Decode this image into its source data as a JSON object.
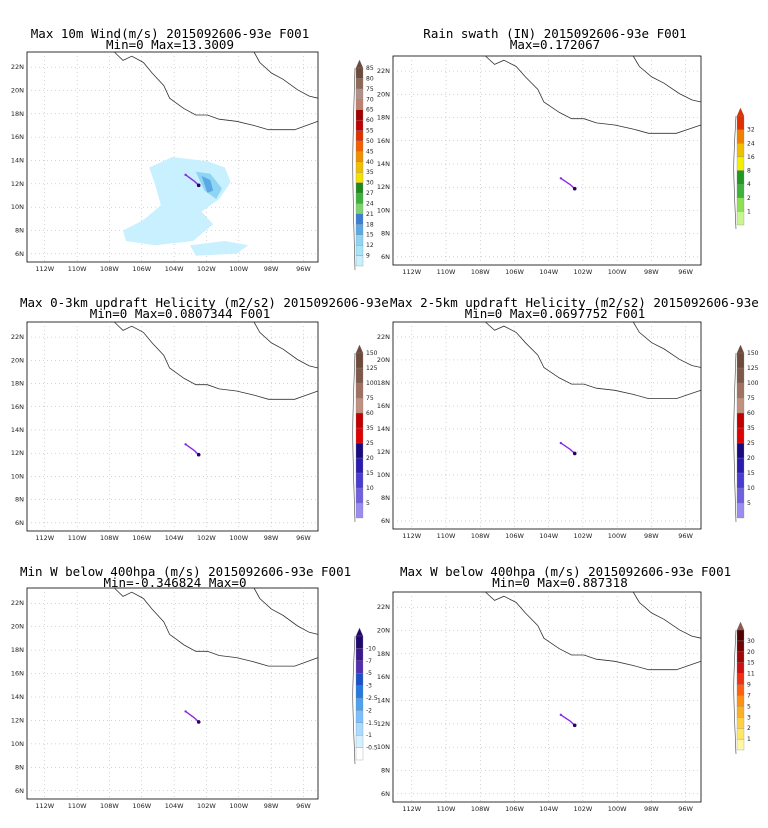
{
  "lat_labels": [
    "6N",
    "8N",
    "10N",
    "12N",
    "14N",
    "16N",
    "18N",
    "20N",
    "22N"
  ],
  "lon_labels": [
    "112W",
    "110W",
    "108W",
    "106W",
    "104W",
    "102W",
    "100W",
    "98W",
    "96W"
  ],
  "colors": {
    "coast": "#333333",
    "grid": "#aaaaaa",
    "track": "#8a2be2",
    "track_end": "#2a0060"
  },
  "panels": [
    {
      "id": "wind",
      "title1": "Max 10m Wind(m/s) 2015092606-93e F001",
      "title2": "Min=0 Max=13.3009",
      "colorbar": {
        "labels": [
          "9",
          "12",
          "15",
          "18",
          "21",
          "24",
          "27",
          "30",
          "35",
          "40",
          "45",
          "50",
          "55",
          "60",
          "65",
          "70",
          "75",
          "80",
          "85"
        ],
        "colors": [
          "#c8f0ff",
          "#a6e6f7",
          "#8fd4f2",
          "#5aa9e6",
          "#3b7fd4",
          "#7fd36e",
          "#3fb03a",
          "#1e8a1e",
          "#f5e000",
          "#f0c000",
          "#f09000",
          "#f06000",
          "#e03000",
          "#c00000",
          "#a00000",
          "#c08070",
          "#b09088",
          "#906858",
          "#6e4a3a"
        ],
        "tip": "#6e4a3a"
      }
    },
    {
      "id": "rain",
      "title1": "Rain swath (IN) 2015092606-93e F001",
      "title2": "Max=0.172067",
      "colorbar": {
        "labels": [
          "1",
          "2",
          "4",
          "8",
          "16",
          "24",
          "32"
        ],
        "colors": [
          "#c8f58c",
          "#8ee050",
          "#3cb43c",
          "#1e9a1e",
          "#f0f000",
          "#f0c000",
          "#f08000",
          "#e03000"
        ],
        "tip": "#e03000"
      }
    },
    {
      "id": "uh03",
      "title1": "Max 0-3km updraft Helicity (m2/s2) 2015092606-93e",
      "title2": "Min=0 Max=0.0807344 F001",
      "colorbar": {
        "labels": [
          "5",
          "10",
          "15",
          "20",
          "25",
          "35",
          "60",
          "75",
          "100",
          "125",
          "150"
        ],
        "colors": [
          "#9a8cf0",
          "#7060e0",
          "#4a3cd0",
          "#2a1cb0",
          "#1a0a80",
          "#e00000",
          "#c00000",
          "#c09080",
          "#a07060",
          "#80584a",
          "#6e4a3a"
        ],
        "tip": "#6e4a3a"
      }
    },
    {
      "id": "uh25",
      "title1": "Max 2-5km updraft Helicity (m2/s2) 2015092606-93e",
      "title2": "Min=0 Max=0.0697752 F001",
      "colorbar": {
        "labels": [
          "5",
          "10",
          "15",
          "20",
          "25",
          "35",
          "60",
          "75",
          "100",
          "125",
          "150"
        ],
        "colors": [
          "#9a8cf0",
          "#7060e0",
          "#4a3cd0",
          "#2a1cb0",
          "#1a0a80",
          "#e00000",
          "#c00000",
          "#c09080",
          "#a07060",
          "#80584a",
          "#6e4a3a"
        ],
        "tip": "#6e4a3a"
      }
    },
    {
      "id": "wmin",
      "title1": "Min W below 400hpa (m/s) 2015092606-93e F001",
      "title2": "Min=-0.346824 Max=0",
      "colorbar": {
        "labels": [
          "-0.5",
          "-1",
          "-1.5",
          "-2",
          "-2.5",
          "-3",
          "-5",
          "-7",
          "-10"
        ],
        "colors": [
          "#ffffff",
          "#d6f0ff",
          "#a8dcff",
          "#78c0ff",
          "#4ea0f0",
          "#2878e0",
          "#1a50c8",
          "#5030b0",
          "#3a1890",
          "#200870"
        ],
        "tip": "#200870"
      }
    },
    {
      "id": "wmax",
      "title1": "Max W below 400hpa (m/s) 2015092606-93e F001",
      "title2": "Min=0 Max=0.887318",
      "colorbar": {
        "labels": [
          "1",
          "2",
          "3",
          "5",
          "7",
          "9",
          "11",
          "15",
          "20",
          "30"
        ],
        "colors": [
          "#fff8a0",
          "#ffe860",
          "#ffd040",
          "#ffb020",
          "#ff9010",
          "#ff6010",
          "#f03010",
          "#d01010",
          "#a00808",
          "#700404",
          "#500202"
        ],
        "tip": "#8a5a4a"
      }
    }
  ]
}
